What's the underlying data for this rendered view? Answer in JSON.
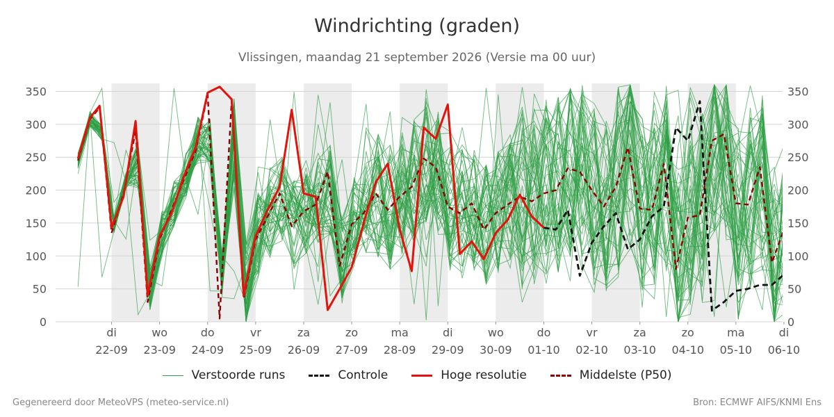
{
  "header": {
    "title": "Windrichting (graden)",
    "subtitle": "Vlissingen, maandag 21 september 2026 (Versie ma 00 uur)"
  },
  "footer": {
    "left": "Gegenereerd door MeteoVPS (meteo-service.nl)",
    "right": "Bron: ECMWF AIFS/KNMI Ens"
  },
  "legend": [
    {
      "label": "Verstoorde runs",
      "color": "#2e9e44",
      "style": "thin-solid"
    },
    {
      "label": "Controle",
      "color": "#111111",
      "style": "dashed"
    },
    {
      "label": "Hoge resolutie",
      "color": "#e3120b",
      "style": "solid"
    },
    {
      "label": "Middelste (P50)",
      "color": "#8b0000",
      "style": "dashed"
    }
  ],
  "chart_data": {
    "type": "line",
    "title": "Windrichting (graden)",
    "subtitle": "Vlissingen, maandag 21 september 2026 (Versie ma 00 uur)",
    "x_unit": "days since 21-09 00:00",
    "xlim": [
      0,
      15.5
    ],
    "ylim": [
      0,
      360
    ],
    "yticks": [
      0,
      50,
      100,
      150,
      200,
      250,
      300,
      350
    ],
    "grid": true,
    "weekend_like_shading": [
      [
        0.5,
        1.5
      ],
      [
        2.5,
        3.5
      ],
      [
        4.5,
        5.5
      ],
      [
        6.5,
        7.5
      ],
      [
        8.5,
        9.5
      ],
      [
        10.5,
        11.5
      ],
      [
        12.5,
        13.5
      ]
    ],
    "x_ticks": [
      {
        "x": 0.5,
        "day": "di",
        "date": "22-09"
      },
      {
        "x": 1.5,
        "day": "wo",
        "date": "23-09"
      },
      {
        "x": 2.5,
        "day": "do",
        "date": "24-09"
      },
      {
        "x": 3.5,
        "day": "vr",
        "date": "25-09"
      },
      {
        "x": 4.5,
        "day": "za",
        "date": "26-09"
      },
      {
        "x": 5.5,
        "day": "zo",
        "date": "27-09"
      },
      {
        "x": 6.5,
        "day": "ma",
        "date": "28-09"
      },
      {
        "x": 7.5,
        "day": "di",
        "date": "29-09"
      },
      {
        "x": 8.5,
        "day": "wo",
        "date": "30-09"
      },
      {
        "x": 9.5,
        "day": "do",
        "date": "01-10"
      },
      {
        "x": 10.5,
        "day": "vr",
        "date": "02-10"
      },
      {
        "x": 11.5,
        "day": "za",
        "date": "03-10"
      },
      {
        "x": 12.5,
        "day": "zo",
        "date": "04-10"
      },
      {
        "x": 13.5,
        "day": "ma",
        "date": "05-10"
      },
      {
        "x": 14.5,
        "day": "di",
        "date": "06-10"
      }
    ],
    "series": [
      {
        "name": "Hoge resolutie",
        "color": "#e3120b",
        "points": [
          [
            -0.2,
            248
          ],
          [
            0.05,
            310
          ],
          [
            0.25,
            328
          ],
          [
            0.5,
            143
          ],
          [
            0.75,
            190
          ],
          [
            1.0,
            305
          ],
          [
            1.25,
            40
          ],
          [
            1.5,
            130
          ],
          [
            1.75,
            165
          ],
          [
            2.0,
            220
          ],
          [
            2.25,
            265
          ],
          [
            2.5,
            348
          ],
          [
            2.75,
            357
          ],
          [
            3.0,
            338
          ],
          [
            3.25,
            40
          ],
          [
            3.5,
            130
          ],
          [
            3.75,
            170
          ],
          [
            4.0,
            205
          ],
          [
            4.25,
            322
          ],
          [
            4.5,
            195
          ],
          [
            4.75,
            190
          ],
          [
            5.0,
            18
          ],
          [
            5.25,
            50
          ],
          [
            5.5,
            83
          ],
          [
            5.75,
            150
          ],
          [
            6.0,
            212
          ],
          [
            6.25,
            240
          ],
          [
            6.5,
            140
          ],
          [
            6.75,
            77
          ],
          [
            7.0,
            295
          ],
          [
            7.25,
            278
          ],
          [
            7.5,
            330
          ],
          [
            7.75,
            103
          ],
          [
            8.0,
            122
          ],
          [
            8.25,
            95
          ],
          [
            8.5,
            135
          ],
          [
            8.75,
            155
          ],
          [
            9.0,
            193
          ],
          [
            9.25,
            160
          ],
          [
            9.5,
            143
          ]
        ]
      },
      {
        "name": "Middelste (P50)",
        "color": "#8b0000",
        "points": [
          [
            -0.2,
            245
          ],
          [
            0.05,
            308
          ],
          [
            0.25,
            325
          ],
          [
            0.5,
            135
          ],
          [
            0.75,
            195
          ],
          [
            1.0,
            290
          ],
          [
            1.25,
            30
          ],
          [
            1.5,
            125
          ],
          [
            1.75,
            170
          ],
          [
            2.0,
            215
          ],
          [
            2.25,
            260
          ],
          [
            2.5,
            345
          ],
          [
            2.75,
            5
          ],
          [
            3.0,
            335
          ],
          [
            3.25,
            35
          ],
          [
            3.5,
            125
          ],
          [
            3.75,
            160
          ],
          [
            4.0,
            195
          ],
          [
            4.25,
            145
          ],
          [
            4.5,
            168
          ],
          [
            4.75,
            178
          ],
          [
            5.0,
            228
          ],
          [
            5.25,
            85
          ],
          [
            5.5,
            148
          ],
          [
            5.75,
            165
          ],
          [
            6.0,
            195
          ],
          [
            6.25,
            170
          ],
          [
            6.5,
            190
          ],
          [
            6.75,
            205
          ],
          [
            7.0,
            248
          ],
          [
            7.25,
            235
          ],
          [
            7.5,
            175
          ],
          [
            7.75,
            165
          ],
          [
            8.0,
            180
          ],
          [
            8.25,
            140
          ],
          [
            8.5,
            165
          ],
          [
            8.75,
            178
          ],
          [
            9.0,
            190
          ],
          [
            9.25,
            183
          ],
          [
            9.5,
            195
          ],
          [
            9.75,
            200
          ],
          [
            10.0,
            233
          ],
          [
            10.25,
            228
          ],
          [
            10.5,
            200
          ],
          [
            10.75,
            175
          ],
          [
            11.0,
            205
          ],
          [
            11.25,
            265
          ],
          [
            11.5,
            172
          ],
          [
            11.75,
            170
          ],
          [
            12.0,
            240
          ],
          [
            12.25,
            80
          ],
          [
            12.5,
            158
          ],
          [
            12.75,
            162
          ],
          [
            13.0,
            275
          ],
          [
            13.25,
            285
          ],
          [
            13.5,
            180
          ],
          [
            13.75,
            178
          ],
          [
            14.0,
            235
          ],
          [
            14.25,
            90
          ],
          [
            14.5,
            140
          ]
        ]
      },
      {
        "name": "Controle",
        "color": "#111111",
        "points": [
          [
            9.5,
            143
          ],
          [
            9.75,
            140
          ],
          [
            10.0,
            170
          ],
          [
            10.25,
            70
          ],
          [
            10.5,
            120
          ],
          [
            10.75,
            145
          ],
          [
            11.0,
            165
          ],
          [
            11.25,
            110
          ],
          [
            11.5,
            125
          ],
          [
            11.75,
            160
          ],
          [
            12.0,
            175
          ],
          [
            12.25,
            295
          ],
          [
            12.5,
            275
          ],
          [
            12.75,
            335
          ],
          [
            13.0,
            17
          ],
          [
            13.25,
            30
          ],
          [
            13.5,
            47
          ],
          [
            13.75,
            50
          ],
          [
            14.0,
            56
          ],
          [
            14.25,
            56
          ],
          [
            14.5,
            72
          ]
        ]
      }
    ]
  }
}
